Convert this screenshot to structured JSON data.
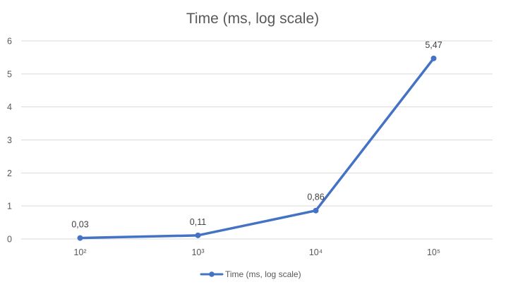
{
  "chart_data": {
    "type": "line",
    "title": "Time (ms, log scale)",
    "xlabel": "",
    "ylabel": "",
    "categories": [
      "10²",
      "10³",
      "10⁴",
      "10⁵"
    ],
    "series": [
      {
        "name": "Time (ms, log scale)",
        "values": [
          0.03,
          0.11,
          0.86,
          5.47
        ],
        "labels": [
          "0,03",
          "0,11",
          "0,86",
          "5,47"
        ],
        "color": "#4472c4"
      }
    ],
    "ylim": [
      0,
      6
    ],
    "yticks": [
      0,
      1,
      2,
      3,
      4,
      5,
      6
    ],
    "ytick_labels": [
      "0",
      "1",
      "2",
      "3",
      "4",
      "5",
      "6"
    ],
    "grid": true,
    "legend": "bottom",
    "markers": true,
    "data_labels": true
  }
}
